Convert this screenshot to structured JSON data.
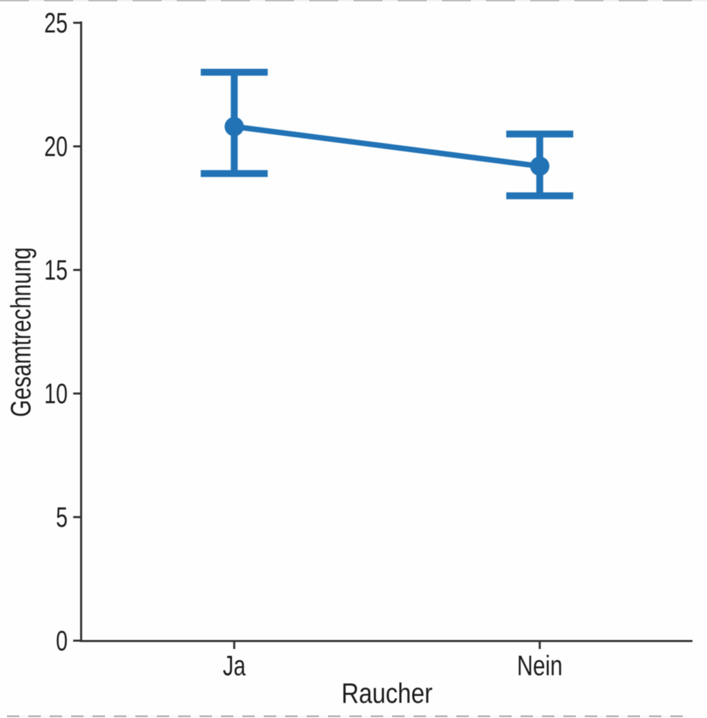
{
  "chart_data": {
    "type": "line",
    "chart_kind": "point-plot-with-error-bars",
    "title": "",
    "xlabel": "Raucher",
    "ylabel": "Gesamtrechnung",
    "categories": [
      "Ja",
      "Nein"
    ],
    "series": [
      {
        "name": "Gesamtrechnung",
        "means": [
          20.8,
          19.2
        ],
        "ci_low": [
          18.9,
          18.0
        ],
        "ci_high": [
          23.0,
          20.5
        ]
      }
    ],
    "y_ticks": [
      0,
      5,
      10,
      15,
      20,
      25
    ],
    "y_tick_labels": [
      "0",
      "5",
      "10",
      "15",
      "20",
      "25"
    ],
    "ylim": [
      0,
      25
    ],
    "grid": false,
    "legend": null,
    "point_color": "#2273b6",
    "axis_color": "#333333",
    "text_color": "#1c1c1c",
    "background_color": "#fefefe"
  }
}
